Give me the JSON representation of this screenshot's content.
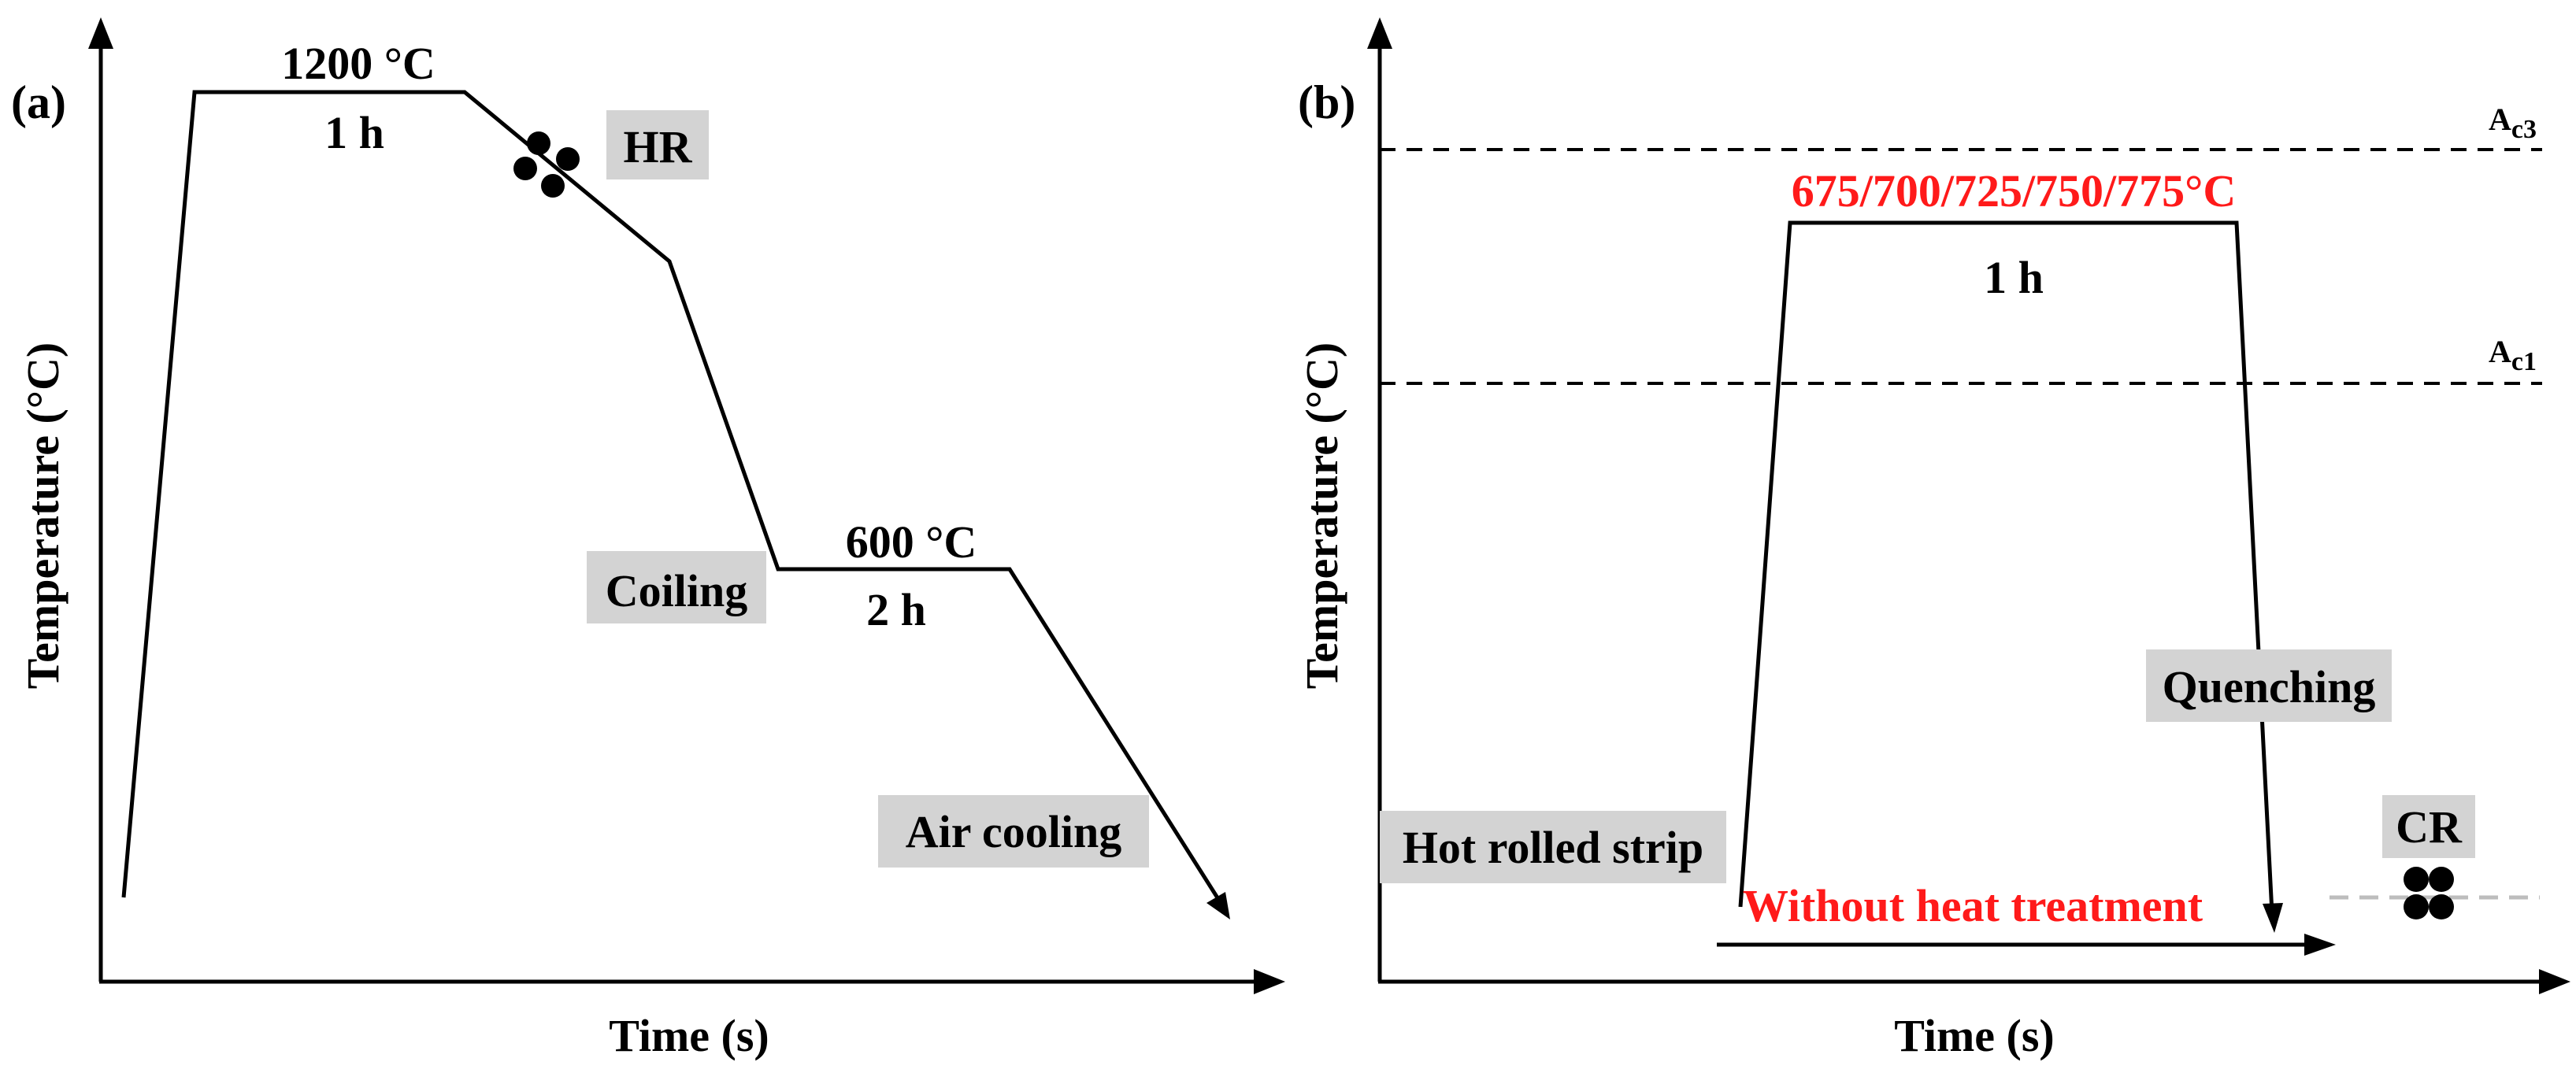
{
  "panel_a": {
    "tag": "(a)",
    "ylabel": "Temperature (°C)",
    "xlabel": "Time (s)",
    "hold1_temp": "1200 °C",
    "hold1_time": "1 h",
    "hr_label": "HR",
    "coiling_label": "Coiling",
    "hold2_temp": "600 °C",
    "hold2_time": "2 h",
    "cooling_label": "Air cooling"
  },
  "panel_b": {
    "tag": "(b)",
    "ylabel": "Temperature (°C)",
    "xlabel": "Time (s)",
    "ac3_main": "A",
    "ac3_sub": "c3",
    "ac1_main": "A",
    "ac1_sub": "c1",
    "anneal_temps": "675/700/725/750/775°C",
    "anneal_time": "1 h",
    "quench_label": "Quenching",
    "strip_label": "Hot rolled strip",
    "no_treatment_label": "Without heat treatment",
    "cr_label": "CR"
  },
  "colors": {
    "line": "#000000",
    "highlight": "#ff1a1a",
    "label_box": "#d3d3d3",
    "cr_dash": "#bdbdbd"
  }
}
